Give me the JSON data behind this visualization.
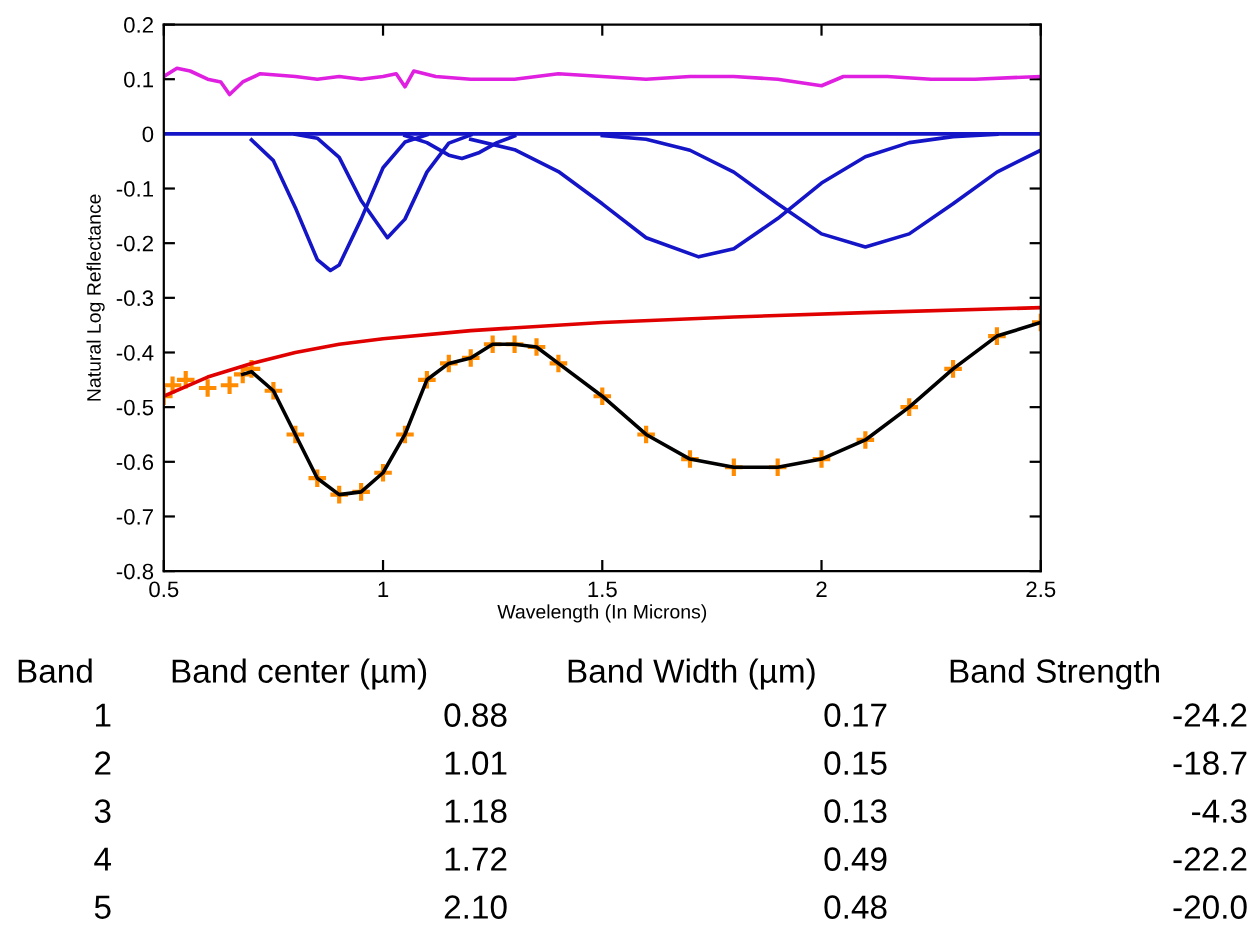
{
  "chart_data": {
    "type": "line",
    "xlabel": "Wavelength (In Microns)",
    "ylabel": "Natural Log Reflectance",
    "xlim": [
      0.5,
      2.5
    ],
    "xticks": [
      0.5,
      1,
      1.5,
      2,
      2.5
    ],
    "ylim": [
      -0.8,
      0.2
    ],
    "yticks": [
      -0.8,
      -0.7,
      -0.6,
      -0.5,
      -0.4,
      -0.3,
      -0.2,
      -0.1,
      0,
      0.1,
      0.2
    ],
    "grid": false,
    "series": [
      {
        "color": "#e020e0",
        "x": [
          0.5,
          0.53,
          0.56,
          0.6,
          0.63,
          0.65,
          0.68,
          0.72,
          0.8,
          0.85,
          0.9,
          0.95,
          1.0,
          1.03,
          1.05,
          1.07,
          1.12,
          1.2,
          1.3,
          1.4,
          1.5,
          1.6,
          1.7,
          1.8,
          1.9,
          2.0,
          2.05,
          2.15,
          2.25,
          2.35,
          2.5
        ],
        "values": [
          0.105,
          0.12,
          0.115,
          0.1,
          0.095,
          0.072,
          0.095,
          0.11,
          0.105,
          0.1,
          0.105,
          0.1,
          0.105,
          0.11,
          0.086,
          0.115,
          0.105,
          0.1,
          0.1,
          0.11,
          0.105,
          0.1,
          0.105,
          0.105,
          0.1,
          0.088,
          0.105,
          0.105,
          0.1,
          0.1,
          0.105
        ]
      },
      {
        "color": "#1515c8",
        "x": [
          0.5,
          2.5
        ],
        "values": [
          0,
          0
        ]
      },
      {
        "color": "#1515c8",
        "x": [
          0.7,
          0.75,
          0.8,
          0.85,
          0.88,
          0.9,
          0.95,
          1.0,
          1.05,
          1.1
        ],
        "values": [
          -0.011,
          -0.049,
          -0.135,
          -0.23,
          -0.25,
          -0.24,
          -0.156,
          -0.062,
          -0.015,
          -0.002
        ]
      },
      {
        "color": "#1515c8",
        "x": [
          0.8,
          0.85,
          0.9,
          0.95,
          1.01,
          1.05,
          1.1,
          1.15,
          1.2
        ],
        "values": [
          -0.001,
          -0.008,
          -0.043,
          -0.122,
          -0.19,
          -0.156,
          -0.07,
          -0.017,
          -0.002
        ]
      },
      {
        "color": "#1515c8",
        "x": [
          1.05,
          1.1,
          1.15,
          1.18,
          1.22,
          1.26,
          1.3
        ],
        "values": [
          -0.003,
          -0.016,
          -0.039,
          -0.045,
          -0.034,
          -0.016,
          -0.004
        ]
      },
      {
        "color": "#1515c8",
        "x": [
          1.2,
          1.3,
          1.4,
          1.5,
          1.6,
          1.72,
          1.8,
          1.9,
          2.0,
          2.1,
          2.2,
          2.3,
          2.4
        ],
        "values": [
          -0.01,
          -0.029,
          -0.069,
          -0.128,
          -0.19,
          -0.225,
          -0.21,
          -0.155,
          -0.09,
          -0.042,
          -0.016,
          -0.005,
          -0.001
        ]
      },
      {
        "color": "#1515c8",
        "x": [
          1.5,
          1.6,
          1.7,
          1.8,
          1.9,
          2.0,
          2.1,
          2.2,
          2.3,
          2.4,
          2.5
        ],
        "values": [
          -0.003,
          -0.01,
          -0.03,
          -0.07,
          -0.128,
          -0.183,
          -0.207,
          -0.183,
          -0.128,
          -0.07,
          -0.03
        ]
      },
      {
        "color": "#e00000",
        "x": [
          0.5,
          0.6,
          0.7,
          0.8,
          0.9,
          1.0,
          1.2,
          1.5,
          1.8,
          2.1,
          2.5
        ],
        "values": [
          -0.48,
          -0.445,
          -0.42,
          -0.4,
          -0.385,
          -0.375,
          -0.36,
          -0.345,
          -0.335,
          -0.327,
          -0.318
        ]
      },
      {
        "type": "scatter",
        "marker": "cross",
        "color": "#ff8c00",
        "x": [
          0.5,
          0.52,
          0.55,
          0.6,
          0.65,
          0.68,
          0.7,
          0.75,
          0.8,
          0.85,
          0.9,
          0.95,
          1.0,
          1.05,
          1.1,
          1.15,
          1.2,
          1.25,
          1.3,
          1.35,
          1.4,
          1.5,
          1.6,
          1.7,
          1.8,
          1.9,
          2.0,
          2.1,
          2.2,
          2.3,
          2.4,
          2.5
        ],
        "values": [
          -0.48,
          -0.46,
          -0.45,
          -0.465,
          -0.46,
          -0.44,
          -0.43,
          -0.47,
          -0.55,
          -0.63,
          -0.66,
          -0.655,
          -0.62,
          -0.55,
          -0.45,
          -0.42,
          -0.41,
          -0.385,
          -0.385,
          -0.39,
          -0.42,
          -0.48,
          -0.55,
          -0.595,
          -0.61,
          -0.61,
          -0.595,
          -0.56,
          -0.5,
          -0.43,
          -0.37,
          -0.345
        ]
      },
      {
        "color": "#000000",
        "x": [
          0.68,
          0.7,
          0.75,
          0.8,
          0.85,
          0.9,
          0.95,
          1.0,
          1.05,
          1.1,
          1.15,
          1.2,
          1.25,
          1.3,
          1.35,
          1.4,
          1.5,
          1.6,
          1.7,
          1.8,
          1.9,
          2.0,
          2.1,
          2.2,
          2.3,
          2.4,
          2.5
        ],
        "values": [
          -0.44,
          -0.435,
          -0.47,
          -0.55,
          -0.63,
          -0.66,
          -0.655,
          -0.62,
          -0.55,
          -0.45,
          -0.42,
          -0.41,
          -0.385,
          -0.385,
          -0.39,
          -0.42,
          -0.48,
          -0.55,
          -0.595,
          -0.61,
          -0.61,
          -0.595,
          -0.56,
          -0.5,
          -0.43,
          -0.37,
          -0.345
        ]
      }
    ],
    "annotations": [
      "Band",
      "Band center (µm)",
      "Band Width (µm)",
      "Band Strength",
      "1",
      "0.88",
      "0.17",
      "-24.2",
      "2",
      "1.01",
      "0.15",
      "-18.7",
      "3",
      "1.18",
      "0.13",
      "-4.3",
      "4",
      "1.72",
      "0.49",
      "-22.2",
      "5",
      "2.10",
      "0.48",
      "-20.0"
    ]
  }
}
